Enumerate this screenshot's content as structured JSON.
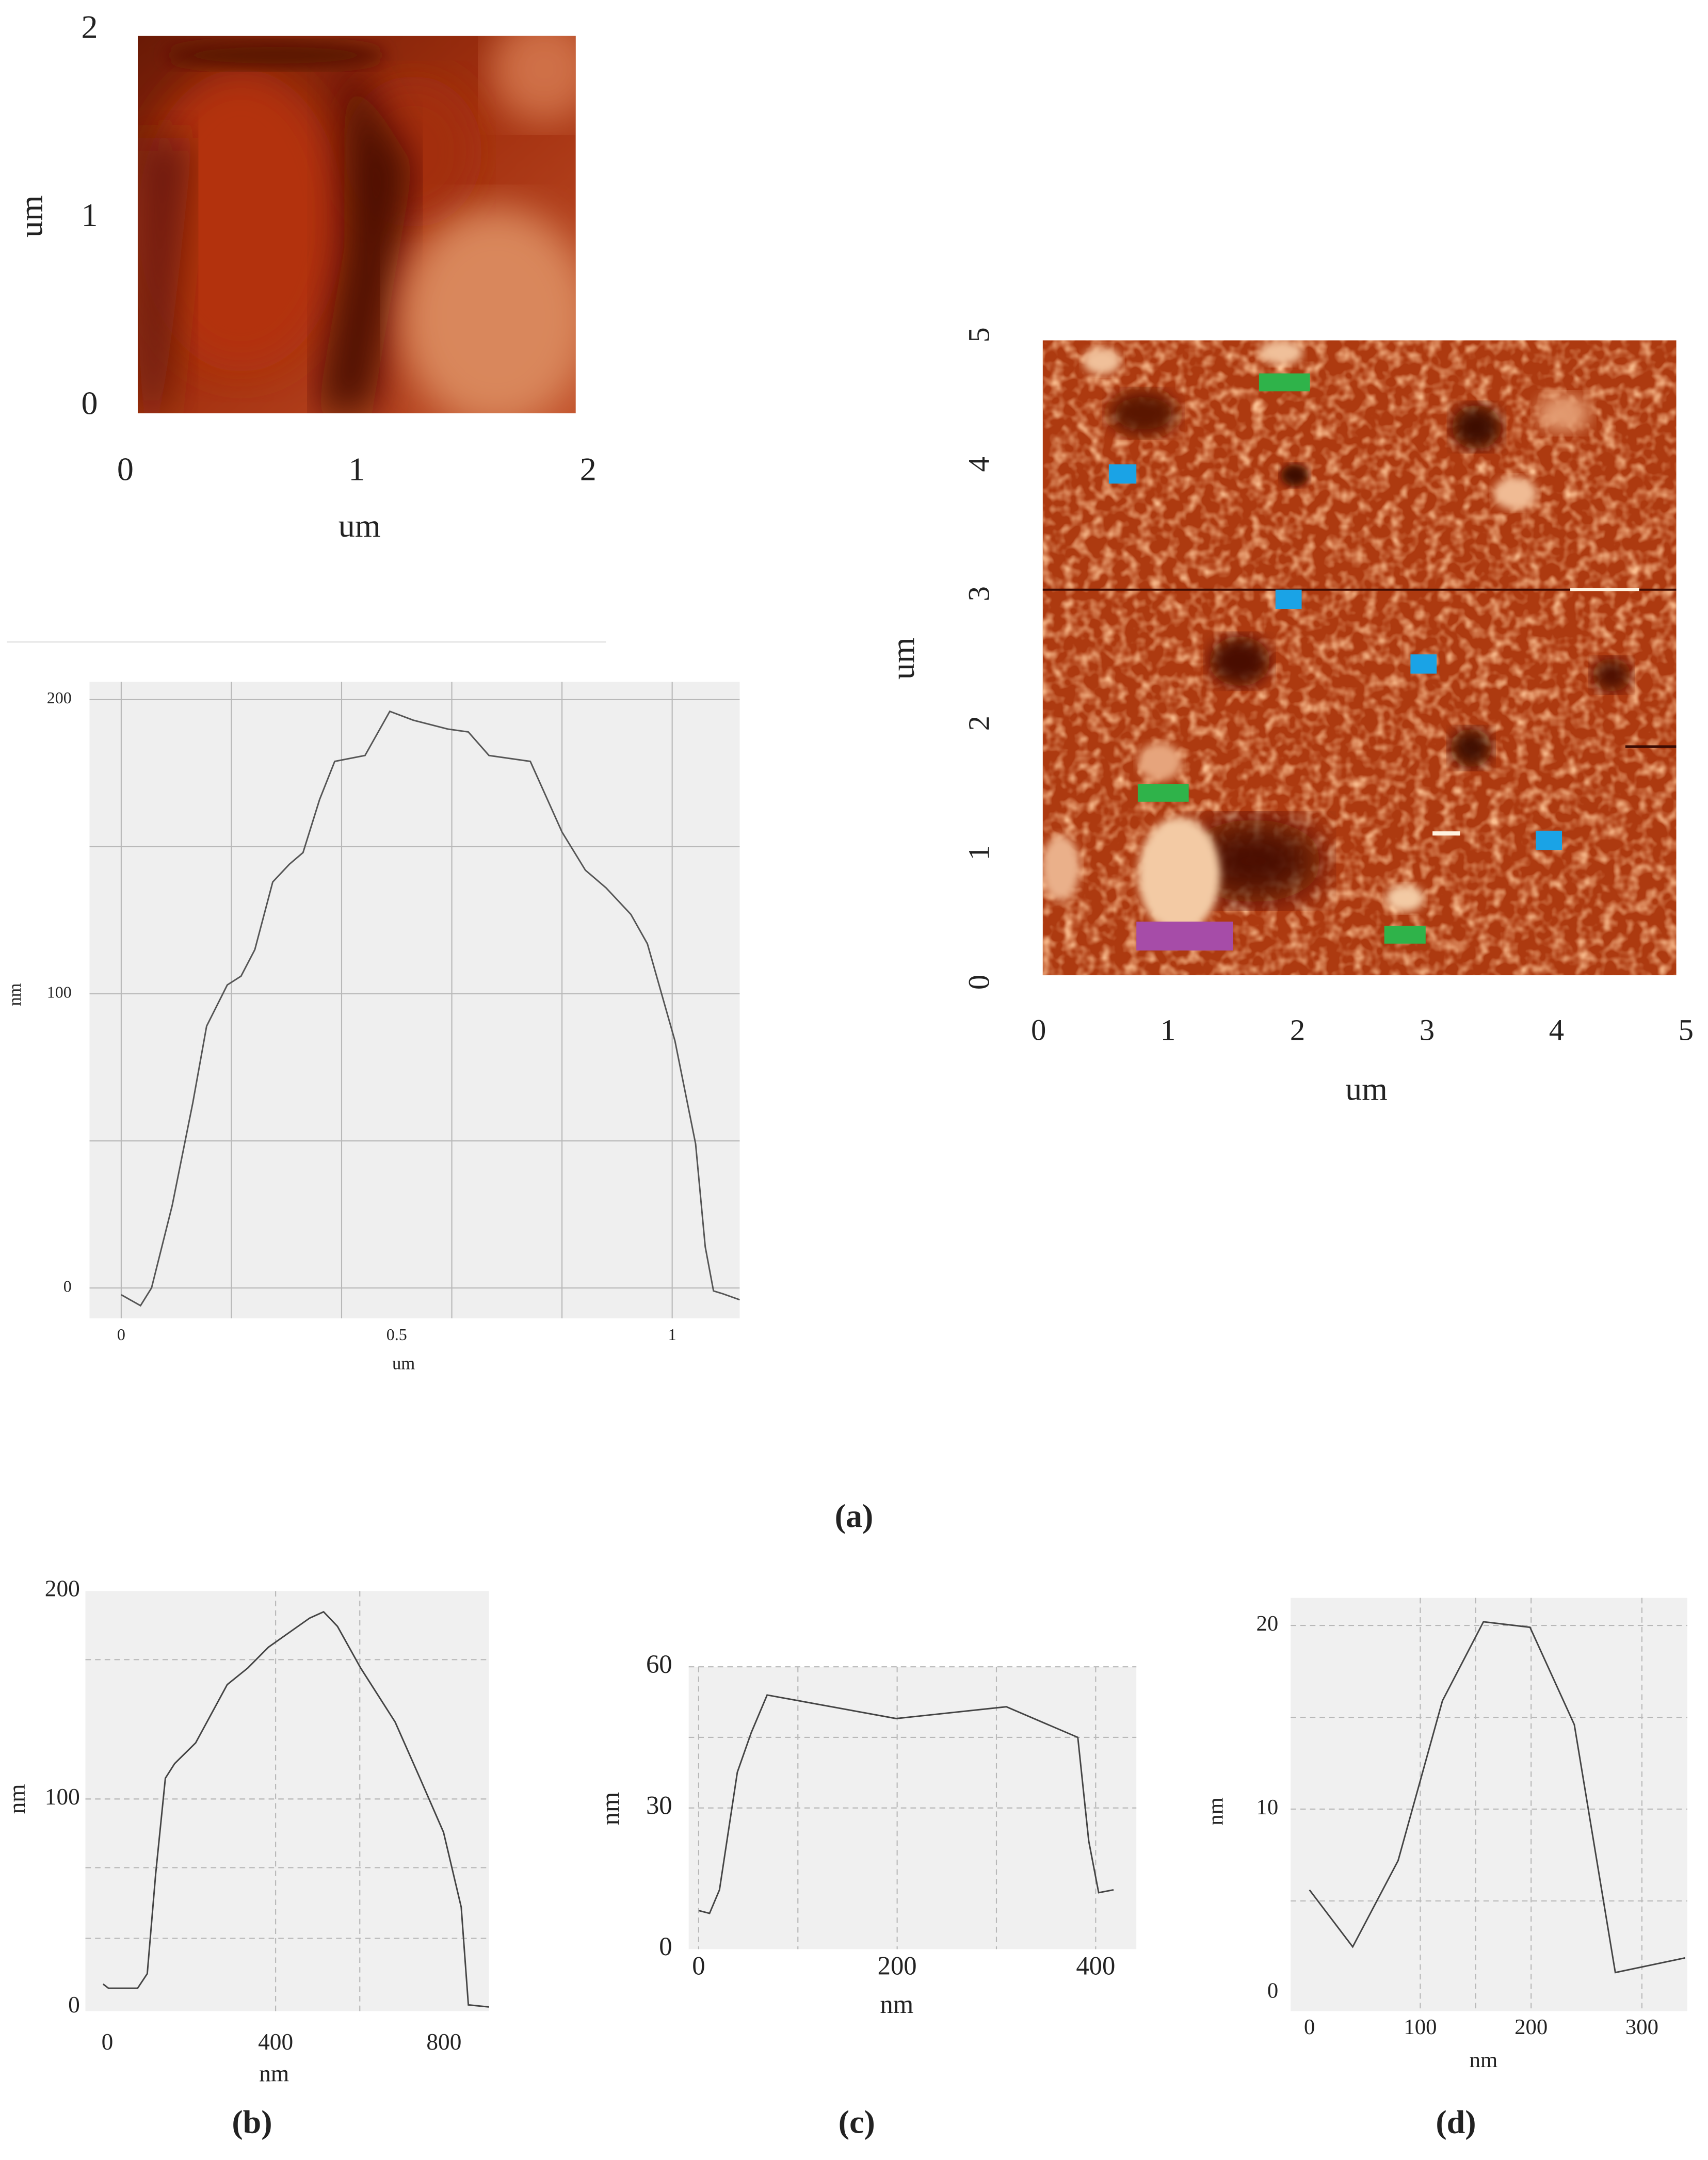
{
  "chart_data": [
    {
      "type": "image",
      "xlabel": "um",
      "ylabel": "um",
      "xlim": [
        0,
        2
      ],
      "ylim": [
        0,
        2
      ],
      "xticks": [
        0,
        1,
        2
      ],
      "yticks": [
        0,
        1,
        2
      ]
    },
    {
      "type": "image",
      "xlabel": "um",
      "ylabel": "um",
      "xlim": [
        0,
        5
      ],
      "ylim": [
        0,
        5
      ],
      "xticks": [
        0,
        1,
        2,
        3,
        4,
        5
      ],
      "yticks": [
        0,
        1,
        2,
        3,
        4,
        5
      ]
    },
    {
      "type": "line",
      "caption": "(a)",
      "xlabel": "um",
      "ylabel": "nm",
      "color": "#555555",
      "xlim": [
        -0.0575,
        1.1225
      ],
      "ylim": [
        -10.3,
        206
      ],
      "xticks": [
        0,
        0.5,
        1
      ],
      "yticks": [
        0,
        100,
        200
      ],
      "grid": true,
      "grid_style": "solid",
      "xgrid": [
        0,
        0.2,
        0.4,
        0.6,
        0.8,
        1
      ],
      "ygrid": [
        0,
        50,
        100,
        150,
        200
      ],
      "x": [
        0,
        0.035,
        0.055,
        0.0925,
        0.13,
        0.155,
        0.1925,
        0.2175,
        0.2425,
        0.275,
        0.305,
        0.33,
        0.36,
        0.3875,
        0.4425,
        0.4875,
        0.53,
        0.5925,
        0.63,
        0.6675,
        0.7425,
        0.8,
        0.8425,
        0.88,
        0.925,
        0.955,
        1.005,
        1.0425,
        1.06,
        1.075,
        1.0925,
        1.1225
      ],
      "values": [
        -2.3,
        -6,
        0,
        28,
        63,
        89,
        103,
        106,
        115,
        138,
        144,
        148,
        166,
        179,
        181,
        196,
        193,
        190,
        189,
        181,
        179,
        155,
        142,
        136,
        127,
        117,
        84,
        49,
        14,
        -1,
        -2,
        -4
      ]
    },
    {
      "type": "line",
      "caption": "(b)",
      "xlabel": "nm",
      "ylabel": "nm",
      "color": "#444444",
      "xlim": [
        -52,
        907
      ],
      "ylim": [
        -2,
        200
      ],
      "xticks": [
        0,
        400,
        800
      ],
      "yticks": [
        0,
        100,
        200
      ],
      "grid": true,
      "grid_style": "dashed",
      "xgrid": [
        400,
        600
      ],
      "ygrid": [
        33,
        67,
        100,
        167
      ],
      "x": [
        -10,
        3,
        72,
        95,
        115,
        138,
        160,
        210,
        285,
        334,
        383,
        432,
        481,
        514,
        547,
        602,
        684,
        743,
        799,
        841,
        858,
        907
      ],
      "values": [
        11,
        9,
        9,
        16,
        64,
        110,
        117,
        127,
        155,
        163,
        173,
        180,
        187,
        190,
        183,
        163,
        137,
        110,
        84,
        48,
        1,
        0
      ]
    },
    {
      "type": "line",
      "caption": "(c)",
      "xlabel": "nm",
      "ylabel": "nm",
      "color": "#444444",
      "xlim": [
        -10,
        441
      ],
      "ylim": [
        0,
        60
      ],
      "xticks": [
        0,
        200,
        400
      ],
      "yticks": [
        0,
        30,
        60
      ],
      "grid": true,
      "grid_style": "dashed",
      "xgrid": [
        0,
        100,
        200,
        300,
        400
      ],
      "ygrid": [
        30,
        45,
        60
      ],
      "x": [
        0,
        11,
        21,
        39,
        53,
        69,
        199,
        310,
        382,
        393,
        403,
        418
      ],
      "values": [
        8.2,
        7.6,
        12.6,
        37.6,
        46,
        54,
        49,
        51.5,
        45,
        23,
        12,
        12.6
      ]
    },
    {
      "type": "line",
      "caption": "(d)",
      "xlabel": "nm",
      "ylabel": "nm",
      "color": "#444444",
      "xlim": [
        -17,
        341
      ],
      "ylim": [
        -1,
        21.5
      ],
      "xticks": [
        0,
        100,
        200,
        300
      ],
      "yticks": [
        0,
        10,
        20
      ],
      "grid": true,
      "grid_style": "dashed",
      "xgrid": [
        100,
        150,
        200,
        300
      ],
      "ygrid": [
        5,
        10,
        15,
        20
      ],
      "x": [
        0,
        39,
        80,
        120,
        157,
        199,
        239,
        276,
        339
      ],
      "values": [
        5.6,
        2.5,
        7.2,
        15.9,
        20.2,
        19.9,
        14.6,
        1.1,
        1.9
      ]
    }
  ]
}
